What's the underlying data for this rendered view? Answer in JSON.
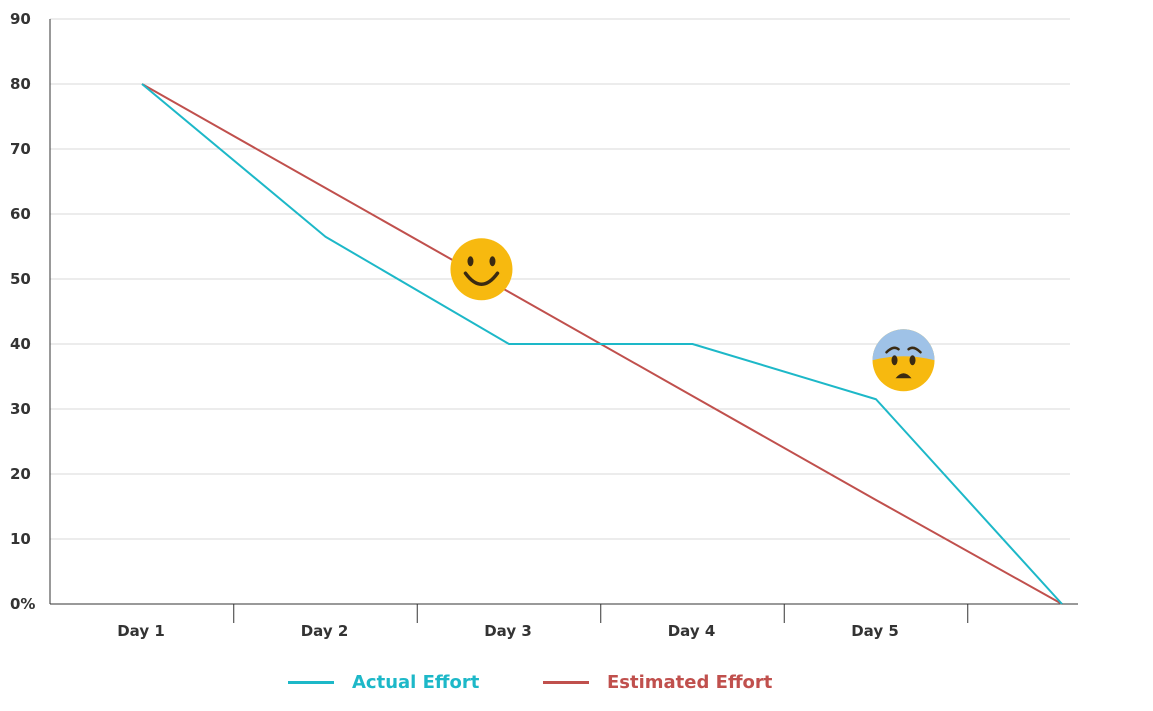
{
  "chart_data": {
    "type": "line",
    "title": "",
    "xlabel": "",
    "ylabel": "",
    "categories": [
      "Day 1",
      "Day 2",
      "Day 3",
      "Day 4",
      "Day 5",
      ""
    ],
    "y_tick_labels": [
      "0%",
      "10",
      "20",
      "30",
      "40",
      "50",
      "60",
      "70",
      "80",
      "90"
    ],
    "ylim": [
      0,
      90
    ],
    "grid": true,
    "legend_position": "bottom",
    "series": [
      {
        "name": "Actual Effort",
        "color": "#1db8c8",
        "values": [
          80,
          56.5,
          40,
          40,
          31.5,
          0
        ]
      },
      {
        "name": "Estimated Effort",
        "color": "#c0504d",
        "values": [
          80,
          64,
          48,
          32,
          16,
          0
        ]
      }
    ],
    "annotations": [
      {
        "icon": "smiley-face-icon",
        "x_index": 1.85,
        "y": 51.5
      },
      {
        "icon": "worried-face-icon",
        "x_index": 4.15,
        "y": 37.5
      }
    ]
  }
}
